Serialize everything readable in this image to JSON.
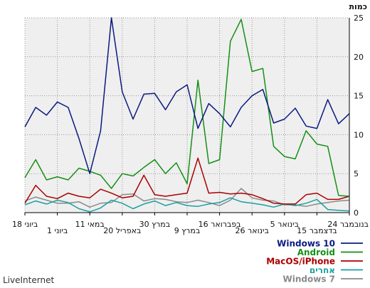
{
  "footer": {
    "brand": "LiveInternet"
  },
  "chart_data": {
    "type": "line",
    "title": "",
    "ylabel": "כמות",
    "xlabel": "",
    "ylim": [
      0,
      25
    ],
    "yticks": [
      0,
      5,
      10,
      15,
      20,
      25
    ],
    "grid": true,
    "legend_position": "bottom-right",
    "x_tick_labels": [
      "24 בנובמבר",
      "15 בדצמבר",
      "5 בינואר",
      "26 בינואר",
      "16 בפברואר",
      "9 במרץ",
      "30 במרץ",
      "20 באפריל",
      "11 במאי",
      "1 ביוני",
      "18 ביוני"
    ],
    "series": [
      {
        "name": "Windows 10",
        "color": "#0b1a80",
        "values": [
          11,
          13.5,
          12.5,
          14.2,
          13.5,
          9.5,
          5,
          10.5,
          25,
          15.5,
          12,
          15.2,
          15.3,
          13.2,
          15.5,
          16.4,
          10.8,
          14,
          12.7,
          11,
          13.5,
          15,
          15.8,
          11.5,
          12,
          13.4,
          11.1,
          10.8,
          14.5,
          11.4,
          12.7
        ]
      },
      {
        "name": "Android",
        "color": "#159015",
        "values": [
          4.5,
          6.8,
          4.2,
          4.6,
          4.2,
          5.7,
          5.3,
          4.8,
          3.1,
          5,
          4.7,
          5.8,
          6.8,
          5,
          6.4,
          3.7,
          17,
          6.3,
          6.8,
          22,
          24.8,
          18.1,
          18.5,
          8.5,
          7.2,
          6.9,
          10.5,
          8.8,
          8.5,
          2.2,
          2.1
        ]
      },
      {
        "name": "MacOS/iPhone",
        "color": "#aa0000",
        "values": [
          1.2,
          3.5,
          2.1,
          1.8,
          2.5,
          2.1,
          1.9,
          3,
          2.5,
          1.9,
          2.1,
          4.8,
          2.3,
          2.1,
          2.3,
          2.5,
          7,
          2.5,
          2.6,
          2.4,
          2.5,
          2.3,
          1.8,
          1.2,
          1.1,
          1.1,
          2.3,
          2.5,
          1.7,
          1.7,
          2.1
        ]
      },
      {
        "name": "אחרים",
        "color": "#1aa0a0",
        "values": [
          1,
          1.5,
          1.1,
          1.6,
          1.3,
          0.5,
          0.1,
          0.6,
          1.6,
          1.2,
          0.5,
          1.1,
          1.5,
          0.9,
          1.3,
          0.9,
          0.8,
          1.1,
          1.3,
          1.9,
          1.4,
          1.2,
          1,
          0.7,
          1.1,
          0.9,
          1.2,
          1.7,
          0.4,
          0.3,
          0.2
        ]
      },
      {
        "name": "Windows 7",
        "color": "#8a8a8a",
        "values": [
          1.5,
          2,
          1.6,
          1.2,
          1.2,
          1.4,
          0.7,
          1.2,
          1.3,
          2.3,
          2.4,
          1.5,
          1.8,
          1.7,
          1.4,
          1.3,
          1.6,
          1.3,
          0.9,
          1.6,
          3.1,
          1.9,
          1.6,
          1.5,
          1,
          1,
          0.8,
          1.1,
          1.3,
          1.5,
          1.6
        ]
      }
    ]
  }
}
